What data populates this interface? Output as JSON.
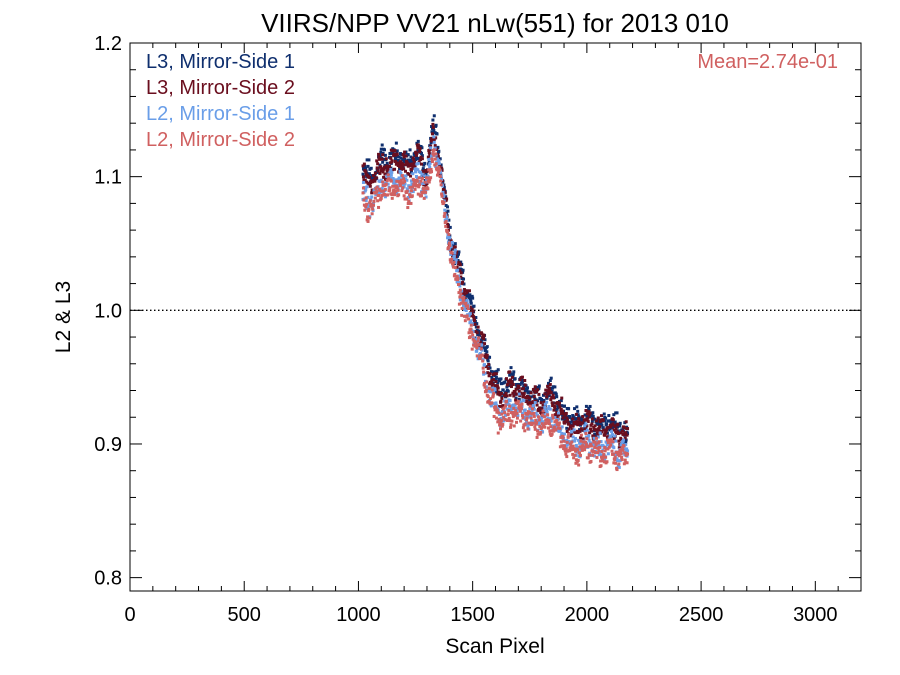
{
  "chart_data": {
    "type": "scatter",
    "title": "VIIRS/NPP VV21 nLw(551) for 2013 010",
    "xlabel": "Scan Pixel",
    "ylabel": "L2 & L3",
    "xlim": [
      0,
      3200
    ],
    "ylim": [
      0.79,
      1.2
    ],
    "xticks": [
      0,
      500,
      1000,
      1500,
      2000,
      2500,
      3000
    ],
    "xtick_labels": [
      "0",
      "500",
      "1000",
      "1500",
      "2000",
      "2500",
      "3000"
    ],
    "yticks": [
      0.8,
      0.9,
      1.0,
      1.1,
      1.2
    ],
    "ytick_labels": [
      "0.8",
      "0.9",
      "1.0",
      "1.1",
      "1.2"
    ],
    "reference_line": {
      "y": 1.0,
      "style": "dotted"
    },
    "annotation": {
      "text": "Mean=2.74e-01",
      "color": "#d06060",
      "placement": "top-right"
    },
    "legend_placement": "top-left",
    "grid": false,
    "series": [
      {
        "name": "L3, Mirror-Side 1",
        "color": "#0f2f6e",
        "offset": 0.004,
        "x": [
          1020,
          1060,
          1100,
          1140,
          1180,
          1220,
          1260,
          1300,
          1330,
          1360,
          1400,
          1440,
          1470,
          1500,
          1540,
          1580,
          1620,
          1660,
          1700,
          1750,
          1800,
          1850,
          1900,
          1950,
          2000,
          2050,
          2100,
          2150,
          2180
        ],
        "y": [
          1.1,
          1.095,
          1.11,
          1.108,
          1.113,
          1.105,
          1.115,
          1.1,
          1.135,
          1.105,
          1.055,
          1.03,
          1.01,
          0.995,
          0.975,
          0.95,
          0.935,
          0.942,
          0.94,
          0.935,
          0.93,
          0.936,
          0.918,
          0.912,
          0.917,
          0.91,
          0.912,
          0.905,
          0.907
        ]
      },
      {
        "name": "L3, Mirror-Side 2",
        "color": "#6a0e1e",
        "offset": 0.0,
        "x": [
          1020,
          1060,
          1100,
          1140,
          1180,
          1220,
          1260,
          1300,
          1330,
          1360,
          1400,
          1440,
          1470,
          1500,
          1540,
          1580,
          1620,
          1660,
          1700,
          1750,
          1800,
          1850,
          1900,
          1950,
          2000,
          2050,
          2100,
          2150,
          2180
        ],
        "y": [
          1.1,
          1.095,
          1.11,
          1.108,
          1.113,
          1.105,
          1.115,
          1.1,
          1.135,
          1.105,
          1.055,
          1.03,
          1.01,
          0.995,
          0.975,
          0.95,
          0.935,
          0.942,
          0.94,
          0.935,
          0.93,
          0.936,
          0.918,
          0.912,
          0.917,
          0.91,
          0.912,
          0.905,
          0.907
        ]
      },
      {
        "name": "L2, Mirror-Side 1",
        "color": "#6a9ee8",
        "offset": 0.0,
        "x": [
          1020,
          1060,
          1100,
          1140,
          1180,
          1220,
          1260,
          1300,
          1330,
          1360,
          1400,
          1440,
          1470,
          1500,
          1540,
          1580,
          1620,
          1660,
          1700,
          1750,
          1800,
          1850,
          1900,
          1950,
          2000,
          2050,
          2100,
          2150,
          2180
        ],
        "y": [
          1.085,
          1.08,
          1.095,
          1.093,
          1.097,
          1.09,
          1.1,
          1.092,
          1.125,
          1.1,
          1.05,
          1.02,
          1.0,
          0.985,
          0.965,
          0.935,
          0.922,
          0.928,
          0.926,
          0.922,
          0.918,
          0.922,
          0.905,
          0.898,
          0.903,
          0.896,
          0.899,
          0.893,
          0.895
        ]
      },
      {
        "name": "L2, Mirror-Side 2",
        "color": "#d06060",
        "offset": -0.004,
        "x": [
          1020,
          1060,
          1100,
          1140,
          1180,
          1220,
          1260,
          1300,
          1330,
          1360,
          1400,
          1440,
          1470,
          1500,
          1540,
          1580,
          1620,
          1660,
          1700,
          1750,
          1800,
          1850,
          1900,
          1950,
          2000,
          2050,
          2100,
          2150,
          2180
        ],
        "y": [
          1.085,
          1.08,
          1.095,
          1.093,
          1.097,
          1.09,
          1.1,
          1.092,
          1.125,
          1.1,
          1.05,
          1.02,
          1.0,
          0.985,
          0.965,
          0.935,
          0.922,
          0.928,
          0.926,
          0.922,
          0.918,
          0.922,
          0.905,
          0.898,
          0.903,
          0.896,
          0.899,
          0.893,
          0.895
        ]
      }
    ]
  }
}
